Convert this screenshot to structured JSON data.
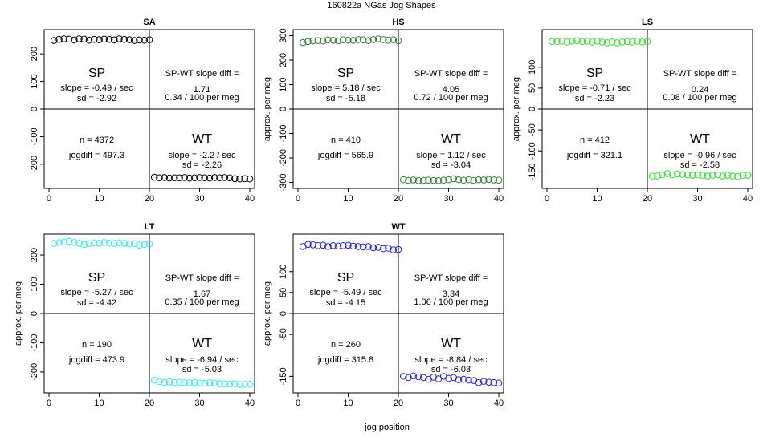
{
  "page": {
    "title": "160822a    NGas Jog Shapes",
    "xlabel": "jog position"
  },
  "chart_data": [
    {
      "type": "scatter",
      "title": "SA",
      "color": "#000000",
      "ylabel": "",
      "xlim": [
        0,
        40
      ],
      "ylim": [
        -270,
        270
      ],
      "xticks": [
        "0",
        "10",
        "20",
        "30",
        "40"
      ],
      "xtick_values": [
        0,
        10,
        20,
        30,
        40
      ],
      "yticks": [
        "-200",
        "-100",
        "0",
        "100",
        "200"
      ],
      "ytick_values": [
        -200,
        -100,
        0,
        100,
        200
      ],
      "sp_label": "SP",
      "sp_slope": "slope = -0.49 / sec",
      "sp_sd": "sd = -2.92",
      "diff_title": "SP-WT slope diff =",
      "diff_value": "1.71",
      "diff_per_meg": "0.34 / 100 per meg",
      "n_text": "n = 4372",
      "jogdiff_text": "jogdiff = 497.3",
      "wt_label": "WT",
      "wt_slope": "slope = -2.2 / sec",
      "wt_sd": "sd = -2.26",
      "sp_values": [
        248,
        252,
        254,
        253,
        250,
        254,
        253,
        249,
        252,
        251,
        253,
        252,
        250,
        254,
        252,
        251,
        248,
        250,
        249,
        251
      ],
      "wt_values": [
        -247,
        -249,
        -248,
        -250,
        -249,
        -249,
        -248,
        -250,
        -249,
        -248,
        -249,
        -250,
        -248,
        -249,
        -248,
        -249,
        -252,
        -253,
        -252,
        -253
      ]
    },
    {
      "type": "scatter",
      "title": "HS",
      "color": "#2e7d2e",
      "ylabel": "approx. per meg",
      "xlim": [
        0,
        40
      ],
      "ylim": [
        -305,
        305
      ],
      "xticks": [
        "0",
        "10",
        "20",
        "30",
        "40"
      ],
      "xtick_values": [
        0,
        10,
        20,
        30,
        40
      ],
      "yticks": [
        "-300",
        "-200",
        "-100",
        "0",
        "100",
        "200",
        "300"
      ],
      "ytick_values": [
        -300,
        -200,
        -100,
        0,
        100,
        200,
        300
      ],
      "sp_label": "SP",
      "sp_slope": "slope = 5.18 / sec",
      "sp_sd": "sd = -5.18",
      "diff_title": "SP-WT slope diff =",
      "diff_value": "4.05",
      "diff_per_meg": "0.72 / 100 per meg",
      "n_text": "n = 410",
      "jogdiff_text": "jogdiff = 565.9",
      "wt_label": "WT",
      "wt_slope": "slope = 1.12 / sec",
      "wt_sd": "sd = -3.04",
      "sp_values": [
        272,
        276,
        279,
        280,
        278,
        283,
        281,
        279,
        283,
        282,
        281,
        284,
        283,
        280,
        284,
        287,
        284,
        281,
        283,
        279
      ],
      "wt_values": [
        -289,
        -292,
        -290,
        -293,
        -292,
        -291,
        -292,
        -293,
        -291,
        -289,
        -285,
        -289,
        -291,
        -289,
        -292,
        -289,
        -290,
        -288,
        -290,
        -291
      ]
    },
    {
      "type": "scatter",
      "title": "LS",
      "color": "#33dd33",
      "ylabel": "approx. per meg",
      "xlim": [
        0,
        40
      ],
      "ylim": [
        -178,
        178
      ],
      "xticks": [
        "0",
        "10",
        "20",
        "30",
        "40"
      ],
      "xtick_values": [
        0,
        10,
        20,
        30,
        40
      ],
      "yticks": [
        "-150",
        "-100",
        "-50",
        "0",
        "50",
        "100"
      ],
      "ytick_values": [
        -150,
        -100,
        -50,
        0,
        50,
        100
      ],
      "sp_label": "SP",
      "sp_slope": "slope = -0.71 / sec",
      "sp_sd": "sd = -2.23",
      "diff_title": "SP-WT slope diff =",
      "diff_value": "0.24",
      "diff_per_meg": "0.08 / 100 per meg",
      "n_text": "n = 412",
      "jogdiff_text": "jogdiff = 321.1",
      "wt_label": "WT",
      "wt_slope": "slope = -0.96 / sec",
      "wt_sd": "sd = -2.58",
      "sp_values": [
        161,
        161,
        162,
        160,
        162,
        163,
        161,
        162,
        160,
        162,
        160,
        158,
        160,
        158,
        160,
        161,
        160,
        162,
        160,
        161
      ],
      "wt_values": [
        -160,
        -160,
        -157,
        -154,
        -157,
        -155,
        -156,
        -157,
        -158,
        -157,
        -158,
        -160,
        -158,
        -157,
        -160,
        -158,
        -160,
        -161,
        -158,
        -158
      ]
    },
    {
      "type": "scatter",
      "title": "LT",
      "color": "#33eeee",
      "ylabel": "approx. per meg",
      "xlim": [
        0,
        40
      ],
      "ylim": [
        -255,
        255
      ],
      "xticks": [
        "0",
        "10",
        "20",
        "30",
        "40"
      ],
      "xtick_values": [
        0,
        10,
        20,
        30,
        40
      ],
      "yticks": [
        "-200",
        "-100",
        "0",
        "100",
        "200"
      ],
      "ytick_values": [
        -200,
        -100,
        0,
        100,
        200
      ],
      "sp_label": "SP",
      "sp_slope": "slope = -5.27 / sec",
      "sp_sd": "sd = -4.42",
      "diff_title": "SP-WT slope diff =",
      "diff_value": "1.67",
      "diff_per_meg": "0.35 / 100 per meg",
      "n_text": "n = 190",
      "jogdiff_text": "jogdiff = 473.9",
      "wt_label": "WT",
      "wt_slope": "slope = -6.94 / sec",
      "wt_sd": "sd = -5.03",
      "sp_values": [
        240,
        243,
        245,
        247,
        243,
        240,
        236,
        239,
        242,
        240,
        243,
        241,
        240,
        242,
        240,
        238,
        239,
        234,
        236,
        238
      ],
      "wt_values": [
        -228,
        -233,
        -236,
        -234,
        -236,
        -235,
        -236,
        -237,
        -236,
        -238,
        -239,
        -237,
        -238,
        -240,
        -241,
        -242,
        -240,
        -243,
        -242,
        -242
      ]
    },
    {
      "type": "scatter",
      "title": "WT",
      "color": "#2222dd",
      "ylabel": "approx. per meg",
      "xlim": [
        0,
        40
      ],
      "ylim": [
        -178,
        178
      ],
      "xticks": [
        "0",
        "10",
        "20",
        "30",
        "40"
      ],
      "xtick_values": [
        0,
        10,
        20,
        30,
        40
      ],
      "yticks": [
        "-150",
        "-50",
        "0",
        "50",
        "100"
      ],
      "ytick_values": [
        -150,
        -50,
        0,
        50,
        100
      ],
      "sp_label": "SP",
      "sp_slope": "slope = -5.49 / sec",
      "sp_sd": "sd = -4.15",
      "diff_title": "SP-WT slope diff =",
      "diff_value": "3.34",
      "diff_per_meg": "1.06 / 100 per meg",
      "n_text": "n = 260",
      "jogdiff_text": "jogdiff = 315.8",
      "wt_label": "WT",
      "wt_slope": "slope = -8.84 / sec",
      "wt_sd": "sd = -6.03",
      "sp_values": [
        160,
        165,
        164,
        162,
        163,
        160,
        162,
        161,
        162,
        163,
        161,
        160,
        159,
        160,
        157,
        158,
        155,
        156,
        152,
        153
      ],
      "wt_values": [
        -150,
        -153,
        -149,
        -151,
        -153,
        -157,
        -152,
        -156,
        -150,
        -155,
        -153,
        -158,
        -157,
        -159,
        -160,
        -165,
        -162,
        -164,
        -165,
        -166
      ]
    }
  ]
}
